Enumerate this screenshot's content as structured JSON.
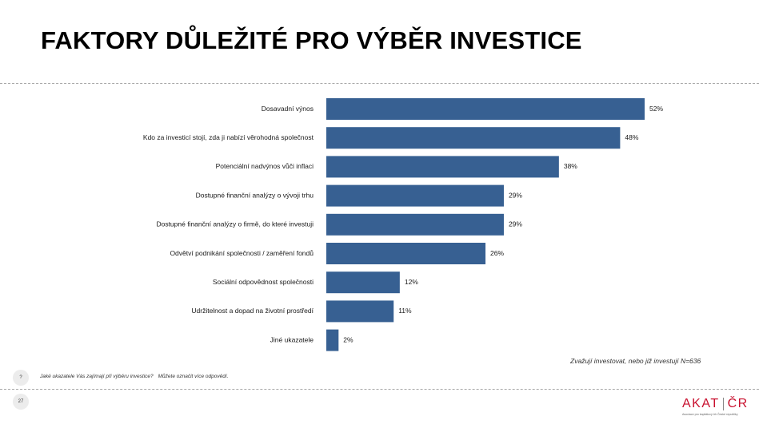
{
  "slide": {
    "title": "FAKTORY DŮLEŽITÉ PRO VÝBĚR INVESTICE",
    "base_note": "Zvažují investovat, nebo již investují N=636",
    "question_marker": "?",
    "question_text": "Jaké ukazatele Vás zajímají při výběru investice?",
    "question_instruction": "Můžete označit více odpovědí.",
    "page_number": "27",
    "logo": {
      "left": "AKAT",
      "right": "ČR",
      "subtitle": "Asociace pro kapitálový trh České republiky"
    }
  },
  "chart_data": {
    "type": "bar",
    "orientation": "horizontal",
    "categories": [
      "Dosavadní výnos",
      "Kdo za investicí stojí, zda ji nabízí věrohodná společnost",
      "Potenciální nadvýnos vůči inflaci",
      "Dostupné finanční analýzy o vývoji trhu",
      "Dostupné finanční analýzy o firmě, do které investuji",
      "Odvětví podnikání společnosti / zaměření fondů",
      "Sociální odpovědnost společnosti",
      "Udržitelnost a dopad na životní prostředí",
      "Jiné ukazatele"
    ],
    "values": [
      52,
      48,
      38,
      29,
      29,
      26,
      12,
      11,
      2
    ],
    "value_labels": [
      "52%",
      "48%",
      "38%",
      "29%",
      "29%",
      "26%",
      "12%",
      "11%",
      "2%"
    ],
    "unit": "%",
    "xlim": [
      0,
      52
    ],
    "grid": false,
    "bar_color": "#376092"
  }
}
